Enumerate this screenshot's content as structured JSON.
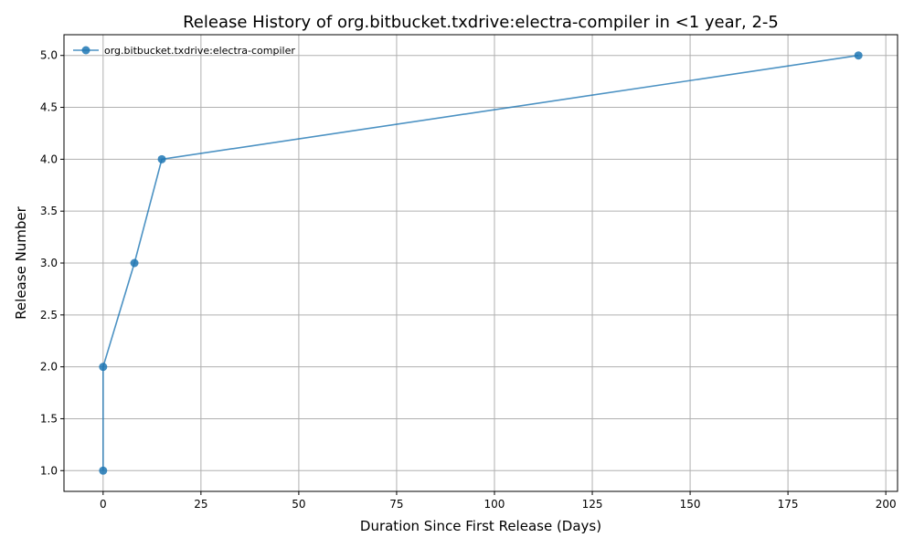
{
  "chart_data": {
    "type": "line",
    "title": "Release History of org.bitbucket.txdrive:electra-compiler in <1 year, 2-5",
    "xlabel": "Duration Since First Release (Days)",
    "ylabel": "Release Number",
    "xlim": [
      -10,
      203
    ],
    "ylim": [
      0.8,
      5.2
    ],
    "xticks": [
      0,
      25,
      50,
      75,
      100,
      125,
      150,
      175,
      200
    ],
    "yticks": [
      1.0,
      1.5,
      2.0,
      2.5,
      3.0,
      3.5,
      4.0,
      4.5,
      5.0
    ],
    "grid": true,
    "legend_position": "top-left",
    "series": [
      {
        "name": "org.bitbucket.txdrive:electra-compiler",
        "color": "#1f77b4",
        "x": [
          0,
          0,
          8,
          15,
          193
        ],
        "y": [
          1,
          2,
          3,
          4,
          5
        ]
      }
    ]
  }
}
